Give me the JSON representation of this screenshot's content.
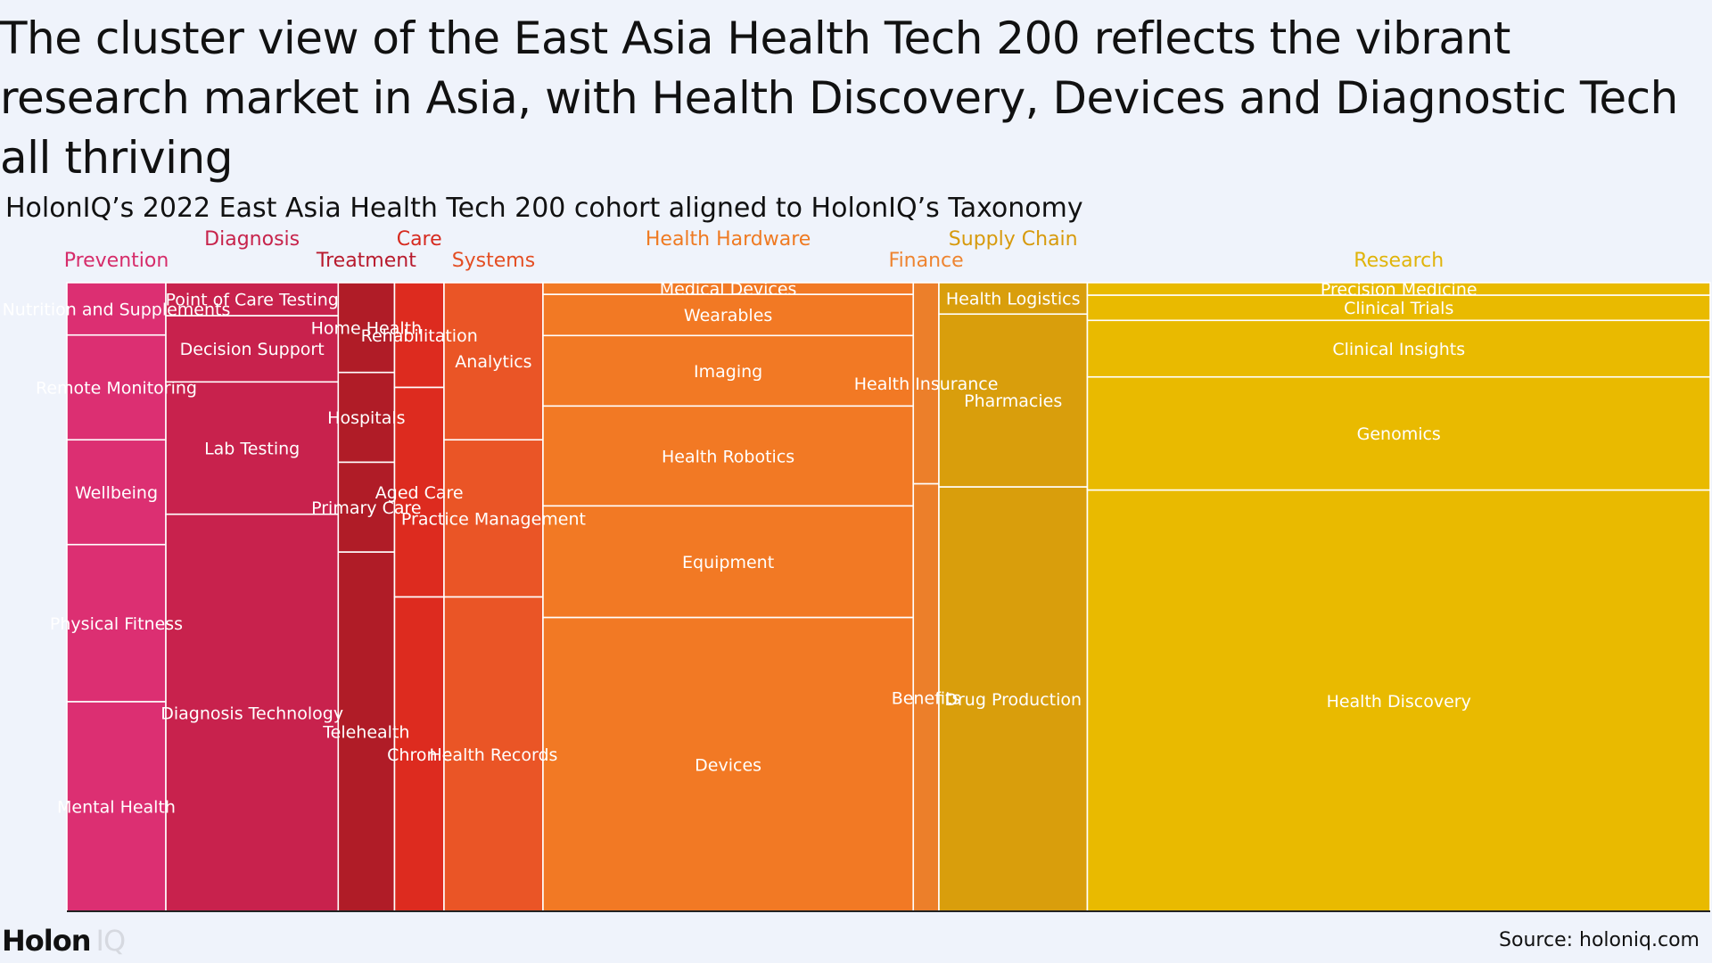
{
  "title": "The cluster view of the East Asia Health Tech 200 reflects the vibrant research market in Asia, with Health Discovery, Devices and Diagnostic Tech all thriving",
  "subtitle": "HolonIQ’s 2022 East Asia Health Tech 200 cohort aligned to HolonIQ’s Taxonomy",
  "footer": {
    "logo_main": "Holon",
    "logo_suffix": "IQ",
    "source": "Source: holoniq.com"
  },
  "chart_data": {
    "type": "marimekko",
    "groups": [
      {
        "name": "Prevention",
        "color": "#dc2f72",
        "label_color": "#d62c6a",
        "width": 5.8,
        "items": [
          {
            "name": "Nutrition and Supplements",
            "value": 5.0
          },
          {
            "name": "Remote Monitoring",
            "value": 10.0
          },
          {
            "name": "Wellbeing",
            "value": 10.0
          },
          {
            "name": "Physical Fitness",
            "value": 15.0
          },
          {
            "name": "Mental Health",
            "value": 20.0
          }
        ]
      },
      {
        "name": "Diagnosis",
        "color": "#c8224d",
        "label_color": "#c7234b",
        "width": 10.1,
        "items": [
          {
            "name": "Point of Care Testing",
            "value": 5.0
          },
          {
            "name": "Decision Support",
            "value": 10.0
          },
          {
            "name": "Lab Testing",
            "value": 20.0
          },
          {
            "name": "Diagnosis Technology",
            "value": 60.0
          }
        ]
      },
      {
        "name": "Treatment",
        "color": "#b01c27",
        "label_color": "#b81b2e",
        "width": 3.3,
        "items": [
          {
            "name": "Home Health",
            "value": 3.0
          },
          {
            "name": "Hospitals",
            "value": 3.0
          },
          {
            "name": "Primary Care",
            "value": 3.0
          },
          {
            "name": "Telehealth",
            "value": 12.0
          }
        ]
      },
      {
        "name": "Care",
        "color": "#dd2b1f",
        "label_color": "#d62a1f",
        "width": 2.9,
        "items": [
          {
            "name": "Rehabilitation",
            "value": 1.0
          },
          {
            "name": "Aged Care",
            "value": 2.0
          },
          {
            "name": "Chronic",
            "value": 3.0
          }
        ]
      },
      {
        "name": "Systems",
        "color": "#ea5526",
        "label_color": "#e44e23",
        "width": 5.8,
        "items": [
          {
            "name": "Analytics",
            "value": 5.0
          },
          {
            "name": "Practice Management",
            "value": 5.0
          },
          {
            "name": "Health Records",
            "value": 10.0
          }
        ]
      },
      {
        "name": "Health Hardware",
        "color": "#f27924",
        "label_color": "#ef7a22",
        "width": 21.7,
        "items": [
          {
            "name": "Medical Devices",
            "value": 1.0
          },
          {
            "name": "Wearables",
            "value": 3.5
          },
          {
            "name": "Imaging",
            "value": 6.0
          },
          {
            "name": "Health Robotics",
            "value": 8.5
          },
          {
            "name": "Equipment",
            "value": 9.5
          },
          {
            "name": "Devices",
            "value": 25.0
          }
        ]
      },
      {
        "name": "Finance",
        "color": "#ec7f2a",
        "label_color": "#ee8430",
        "width": 1.5,
        "items": [
          {
            "name": "Health Insurance",
            "value": 8.0
          },
          {
            "name": "Benefits",
            "value": 17.0
          }
        ]
      },
      {
        "name": "Supply Chain",
        "color": "#d99e0c",
        "label_color": "#d79a0c",
        "width": 8.7,
        "items": [
          {
            "name": "Health Logistics",
            "value": 2.0
          },
          {
            "name": "Pharmacies",
            "value": 11.0
          },
          {
            "name": "Drug Production",
            "value": 27.0
          }
        ]
      },
      {
        "name": "Research",
        "color": "#e9ba00",
        "label_color": "#e0b40a",
        "width": 36.5,
        "items": [
          {
            "name": "Precision Medicine",
            "value": 1.0
          },
          {
            "name": "Clinical Trials",
            "value": 2.0
          },
          {
            "name": "Clinical Insights",
            "value": 4.5
          },
          {
            "name": "Genomics",
            "value": 9.0
          },
          {
            "name": "Health Discovery",
            "value": 33.5
          }
        ]
      }
    ]
  }
}
